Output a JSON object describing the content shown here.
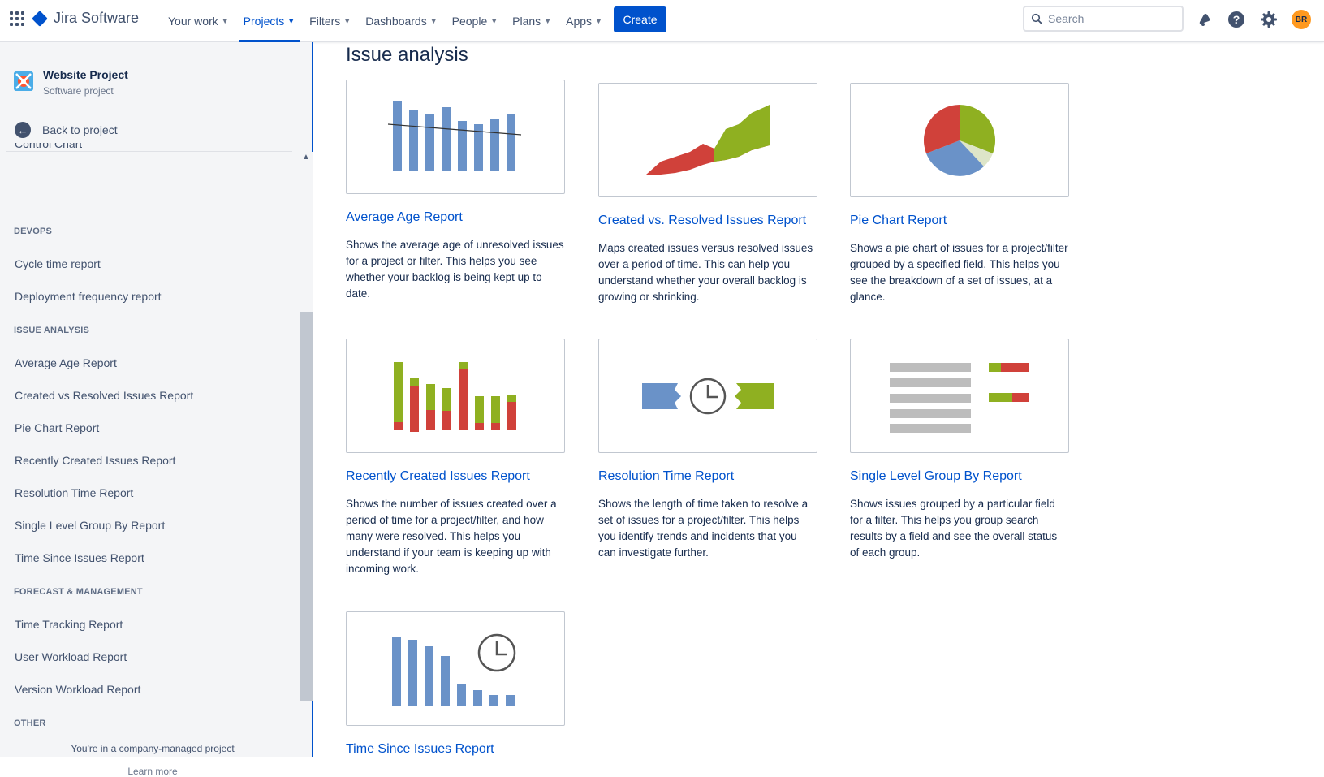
{
  "topbar": {
    "product": "Jira Software",
    "nav": [
      {
        "label": "Your work",
        "active": false
      },
      {
        "label": "Projects",
        "active": true
      },
      {
        "label": "Filters",
        "active": false
      },
      {
        "label": "Dashboards",
        "active": false
      },
      {
        "label": "People",
        "active": false
      },
      {
        "label": "Plans",
        "active": false
      },
      {
        "label": "Apps",
        "active": false
      }
    ],
    "create_label": "Create",
    "search_placeholder": "Search",
    "avatar_initials": "BR",
    "accent": "#0052cc"
  },
  "sidebar": {
    "project_name": "Website Project",
    "project_type": "Software project",
    "back_label": "Back to project",
    "cut_item": "Control Chart",
    "sections": [
      {
        "title": "DEVOPS",
        "items": [
          "Cycle time report",
          "Deployment frequency report"
        ]
      },
      {
        "title": "ISSUE ANALYSIS",
        "items": [
          "Average Age Report",
          "Created vs Resolved Issues Report",
          "Pie Chart Report",
          "Recently Created Issues Report",
          "Resolution Time Report",
          "Single Level Group By Report",
          "Time Since Issues Report"
        ]
      },
      {
        "title": "FORECAST & MANAGEMENT",
        "items": [
          "Time Tracking Report",
          "User Workload Report",
          "Version Workload Report"
        ]
      },
      {
        "title": "OTHER",
        "items": []
      }
    ],
    "footer_note": "You're in a company-managed project",
    "footer_link": "Learn more"
  },
  "main": {
    "title": "Issue analysis",
    "cards": [
      {
        "title": "Average Age Report",
        "desc": "Shows the average age of unresolved issues for a project or filter. This helps you see whether your backlog is being kept up to date."
      },
      {
        "title": "Created vs. Resolved Issues Report",
        "desc": "Maps created issues versus resolved issues over a period of time. This can help you understand whether your overall backlog is growing or shrinking."
      },
      {
        "title": "Pie Chart Report",
        "desc": "Shows a pie chart of issues for a project/filter grouped by a specified field. This helps you see the breakdown of a set of issues, at a glance."
      },
      {
        "title": "Recently Created Issues Report",
        "desc": "Shows the number of issues created over a period of time for a project/filter, and how many were resolved. This helps you understand if your team is keeping up with incoming work."
      },
      {
        "title": "Resolution Time Report",
        "desc": "Shows the length of time taken to resolve a set of issues for a project/filter. This helps you identify trends and incidents that you can investigate further."
      },
      {
        "title": "Single Level Group By Report",
        "desc": "Shows issues grouped by a particular field for a filter. This helps you group search results by a field and see the overall status of each group."
      },
      {
        "title": "Time Since Issues Report",
        "desc": ""
      }
    ]
  },
  "colors": {
    "blue": "#6a92c8",
    "green": "#8fb021",
    "red": "#d0413a",
    "gray": "#bdbdbd"
  }
}
